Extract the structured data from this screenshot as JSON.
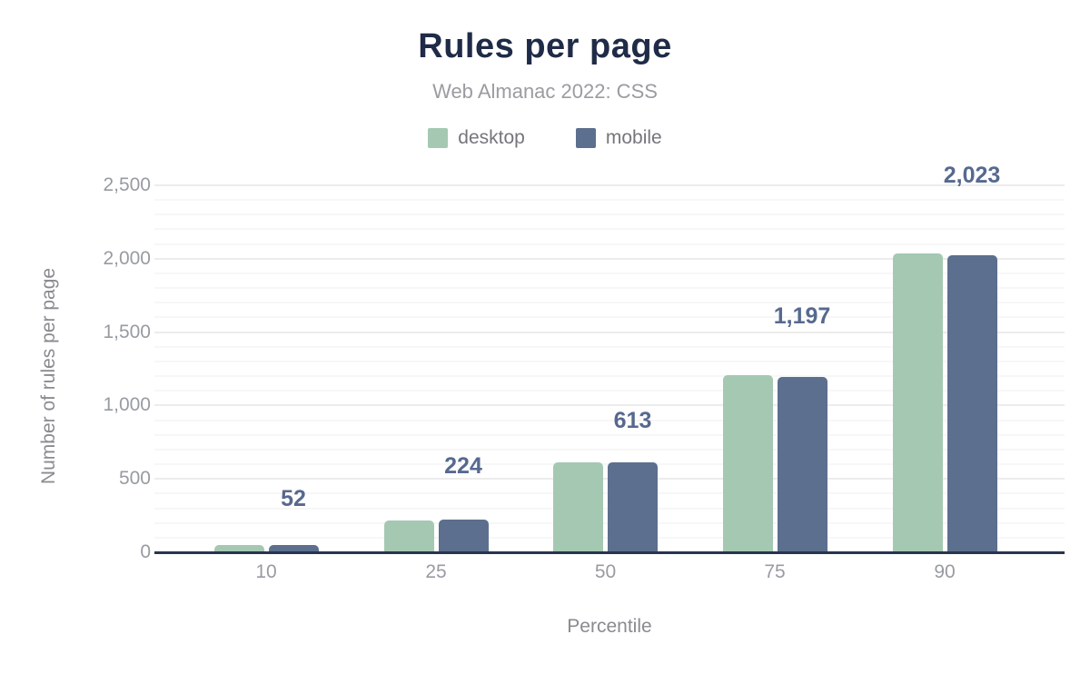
{
  "chart_data": {
    "type": "bar",
    "title": "Rules per page",
    "subtitle": "Web Almanac 2022: CSS",
    "xlabel": "Percentile",
    "ylabel": "Number of rules per page",
    "categories": [
      "10",
      "25",
      "50",
      "75",
      "90"
    ],
    "series": [
      {
        "name": "desktop",
        "color": "#a5c8b3",
        "values": [
          48,
          215,
          611,
          1205,
          2035
        ]
      },
      {
        "name": "mobile",
        "color": "#5c6f8e",
        "values": [
          52,
          224,
          613,
          1197,
          2023
        ]
      }
    ],
    "data_labels": {
      "series": "mobile",
      "values": [
        "52",
        "224",
        "613",
        "1,197",
        "2,023"
      ]
    },
    "ylim": [
      0,
      2500
    ],
    "yticks": [
      {
        "value": 0,
        "label": "0"
      },
      {
        "value": 500,
        "label": "500"
      },
      {
        "value": 1000,
        "label": "1,000"
      },
      {
        "value": 1500,
        "label": "1,500"
      },
      {
        "value": 2000,
        "label": "2,000"
      },
      {
        "value": 2500,
        "label": "2,500"
      }
    ],
    "grid": {
      "minor_step": 100,
      "major_step": 500,
      "minor_color": "#f7f7f7",
      "major_color": "#ececec"
    },
    "legend_position": "top",
    "axis_color": "#28344e",
    "label_color": "#56698f",
    "tick_color": "#989ba2"
  }
}
